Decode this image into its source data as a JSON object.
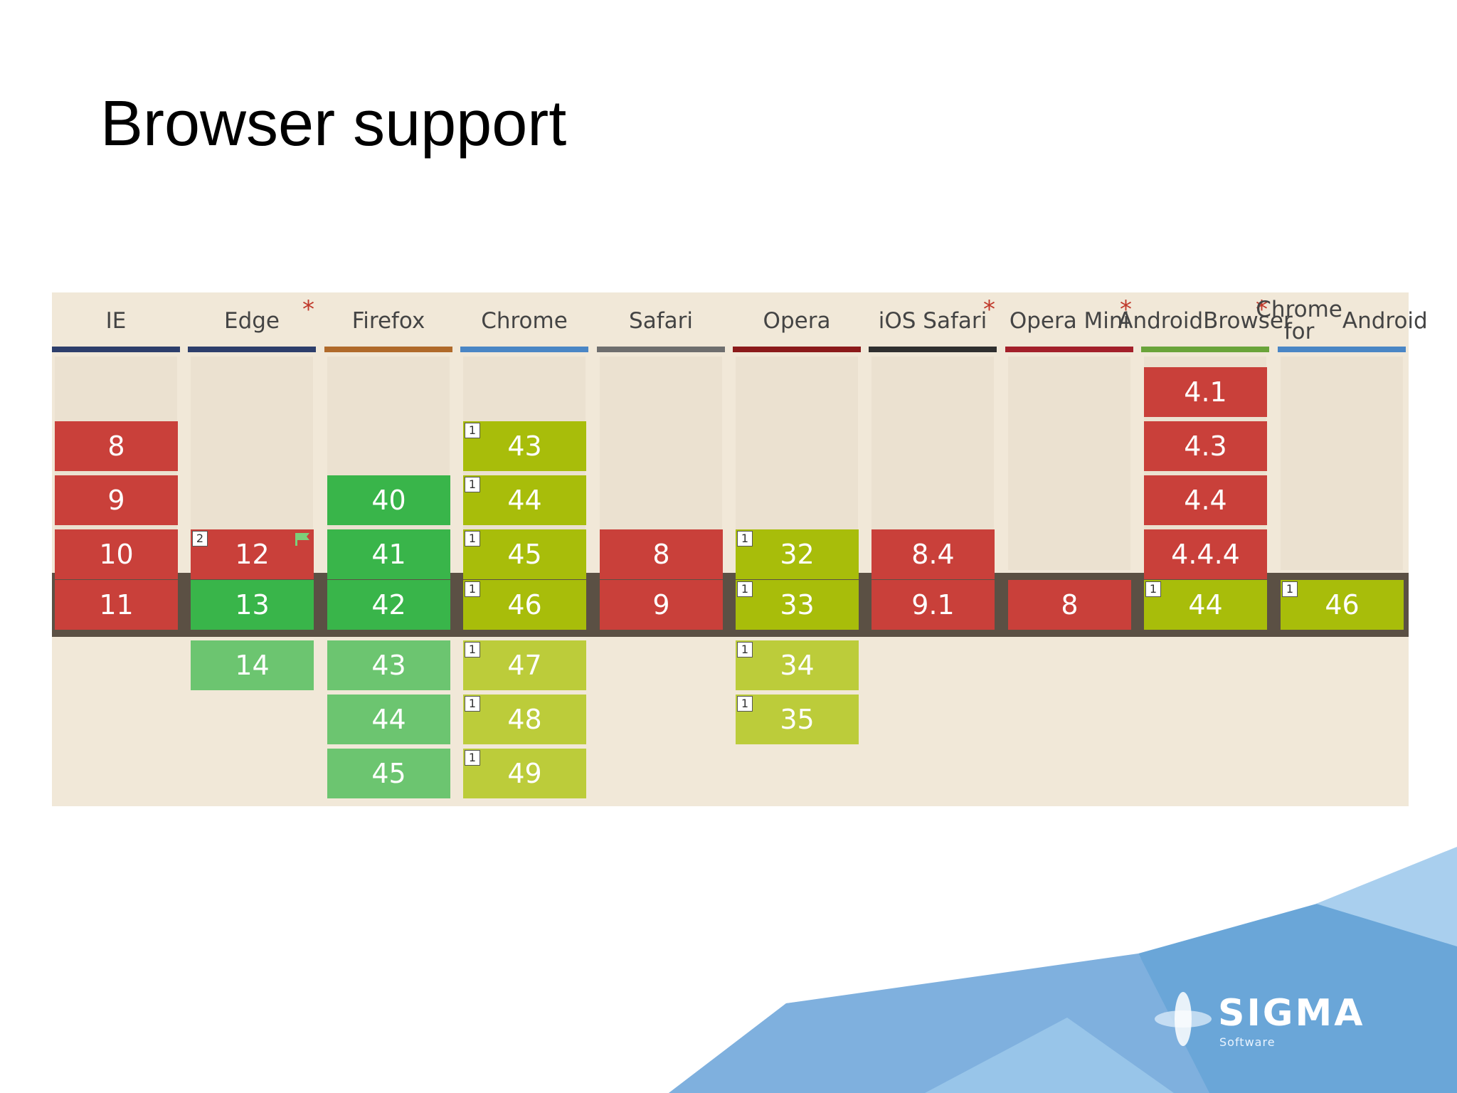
{
  "slide": {
    "title": "Browser support"
  },
  "browsers": [
    {
      "key": "ie",
      "name": [
        "IE"
      ],
      "star": false,
      "bar_color": "#2d3e6b",
      "cells": [
        {
          "row": 1,
          "v": "8",
          "c": "red"
        },
        {
          "row": 2,
          "v": "9",
          "c": "red"
        },
        {
          "row": 3,
          "v": "10",
          "c": "red"
        },
        {
          "row": 4,
          "v": "11",
          "c": "red"
        }
      ]
    },
    {
      "key": "edge",
      "name": [
        "Edge"
      ],
      "star": true,
      "bar_color": "#2d3e6b",
      "cells": [
        {
          "row": 3,
          "v": "12",
          "c": "red",
          "note": "2",
          "flag": true
        },
        {
          "row": 4,
          "v": "13",
          "c": "green"
        },
        {
          "row": 5,
          "v": "14",
          "c": "lgreen"
        }
      ]
    },
    {
      "key": "firefox",
      "name": [
        "Firefox"
      ],
      "star": false,
      "bar_color": "#b06a2a",
      "cells": [
        {
          "row": 2,
          "v": "40",
          "c": "green"
        },
        {
          "row": 3,
          "v": "41",
          "c": "green"
        },
        {
          "row": 4,
          "v": "42",
          "c": "green"
        },
        {
          "row": 5,
          "v": "43",
          "c": "lgreen"
        },
        {
          "row": 6,
          "v": "44",
          "c": "lgreen"
        },
        {
          "row": 7,
          "v": "45",
          "c": "lgreen"
        }
      ]
    },
    {
      "key": "chrome",
      "name": [
        "Chrome"
      ],
      "star": false,
      "bar_color": "#4a86c5",
      "cells": [
        {
          "row": 1,
          "v": "43",
          "c": "lime",
          "note": "1"
        },
        {
          "row": 2,
          "v": "44",
          "c": "lime",
          "note": "1"
        },
        {
          "row": 3,
          "v": "45",
          "c": "lime",
          "note": "1"
        },
        {
          "row": 4,
          "v": "46",
          "c": "lime",
          "note": "1"
        },
        {
          "row": 5,
          "v": "47",
          "c": "llime",
          "note": "1"
        },
        {
          "row": 6,
          "v": "48",
          "c": "llime",
          "note": "1"
        },
        {
          "row": 7,
          "v": "49",
          "c": "llime",
          "note": "1"
        }
      ]
    },
    {
      "key": "safari",
      "name": [
        "Safari"
      ],
      "star": false,
      "bar_color": "#6e6e6e",
      "cells": [
        {
          "row": 3,
          "v": "8",
          "c": "red"
        },
        {
          "row": 4,
          "v": "9",
          "c": "red"
        }
      ]
    },
    {
      "key": "opera",
      "name": [
        "Opera"
      ],
      "star": false,
      "bar_color": "#8b1a1a",
      "cells": [
        {
          "row": 3,
          "v": "32",
          "c": "lime",
          "note": "1"
        },
        {
          "row": 4,
          "v": "33",
          "c": "lime",
          "note": "1"
        },
        {
          "row": 5,
          "v": "34",
          "c": "llime",
          "note": "1"
        },
        {
          "row": 6,
          "v": "35",
          "c": "llime",
          "note": "1"
        }
      ]
    },
    {
      "key": "ios-safari",
      "name": [
        "iOS Safari"
      ],
      "star": true,
      "bar_color": "#2f2f2f",
      "cells": [
        {
          "row": 3,
          "v": "8.4",
          "c": "red"
        },
        {
          "row": 4,
          "v": "9.1",
          "c": "red"
        }
      ]
    },
    {
      "key": "opera-mini",
      "name": [
        "Opera Mini"
      ],
      "star": true,
      "bar_color": "#a3202a",
      "cells": [
        {
          "row": 4,
          "v": "8",
          "c": "red"
        }
      ]
    },
    {
      "key": "android-browser",
      "name": [
        "Android",
        "Browser"
      ],
      "star": true,
      "bar_color": "#6aa43a",
      "cells": [
        {
          "row": 0,
          "v": "4.1",
          "c": "red"
        },
        {
          "row": 1,
          "v": "4.3",
          "c": "red"
        },
        {
          "row": 2,
          "v": "4.4",
          "c": "red"
        },
        {
          "row": 3,
          "v": "4.4.4",
          "c": "red"
        },
        {
          "row": 4,
          "v": "44",
          "c": "lime",
          "note": "1"
        }
      ]
    },
    {
      "key": "chrome-android",
      "name": [
        "Chrome for",
        "Android"
      ],
      "star": false,
      "bar_color": "#4a86c5",
      "cells": [
        {
          "row": 4,
          "v": "46",
          "c": "lime",
          "note": "1"
        }
      ]
    }
  ],
  "logo": {
    "text": "SIGMA",
    "sub": "Software"
  }
}
